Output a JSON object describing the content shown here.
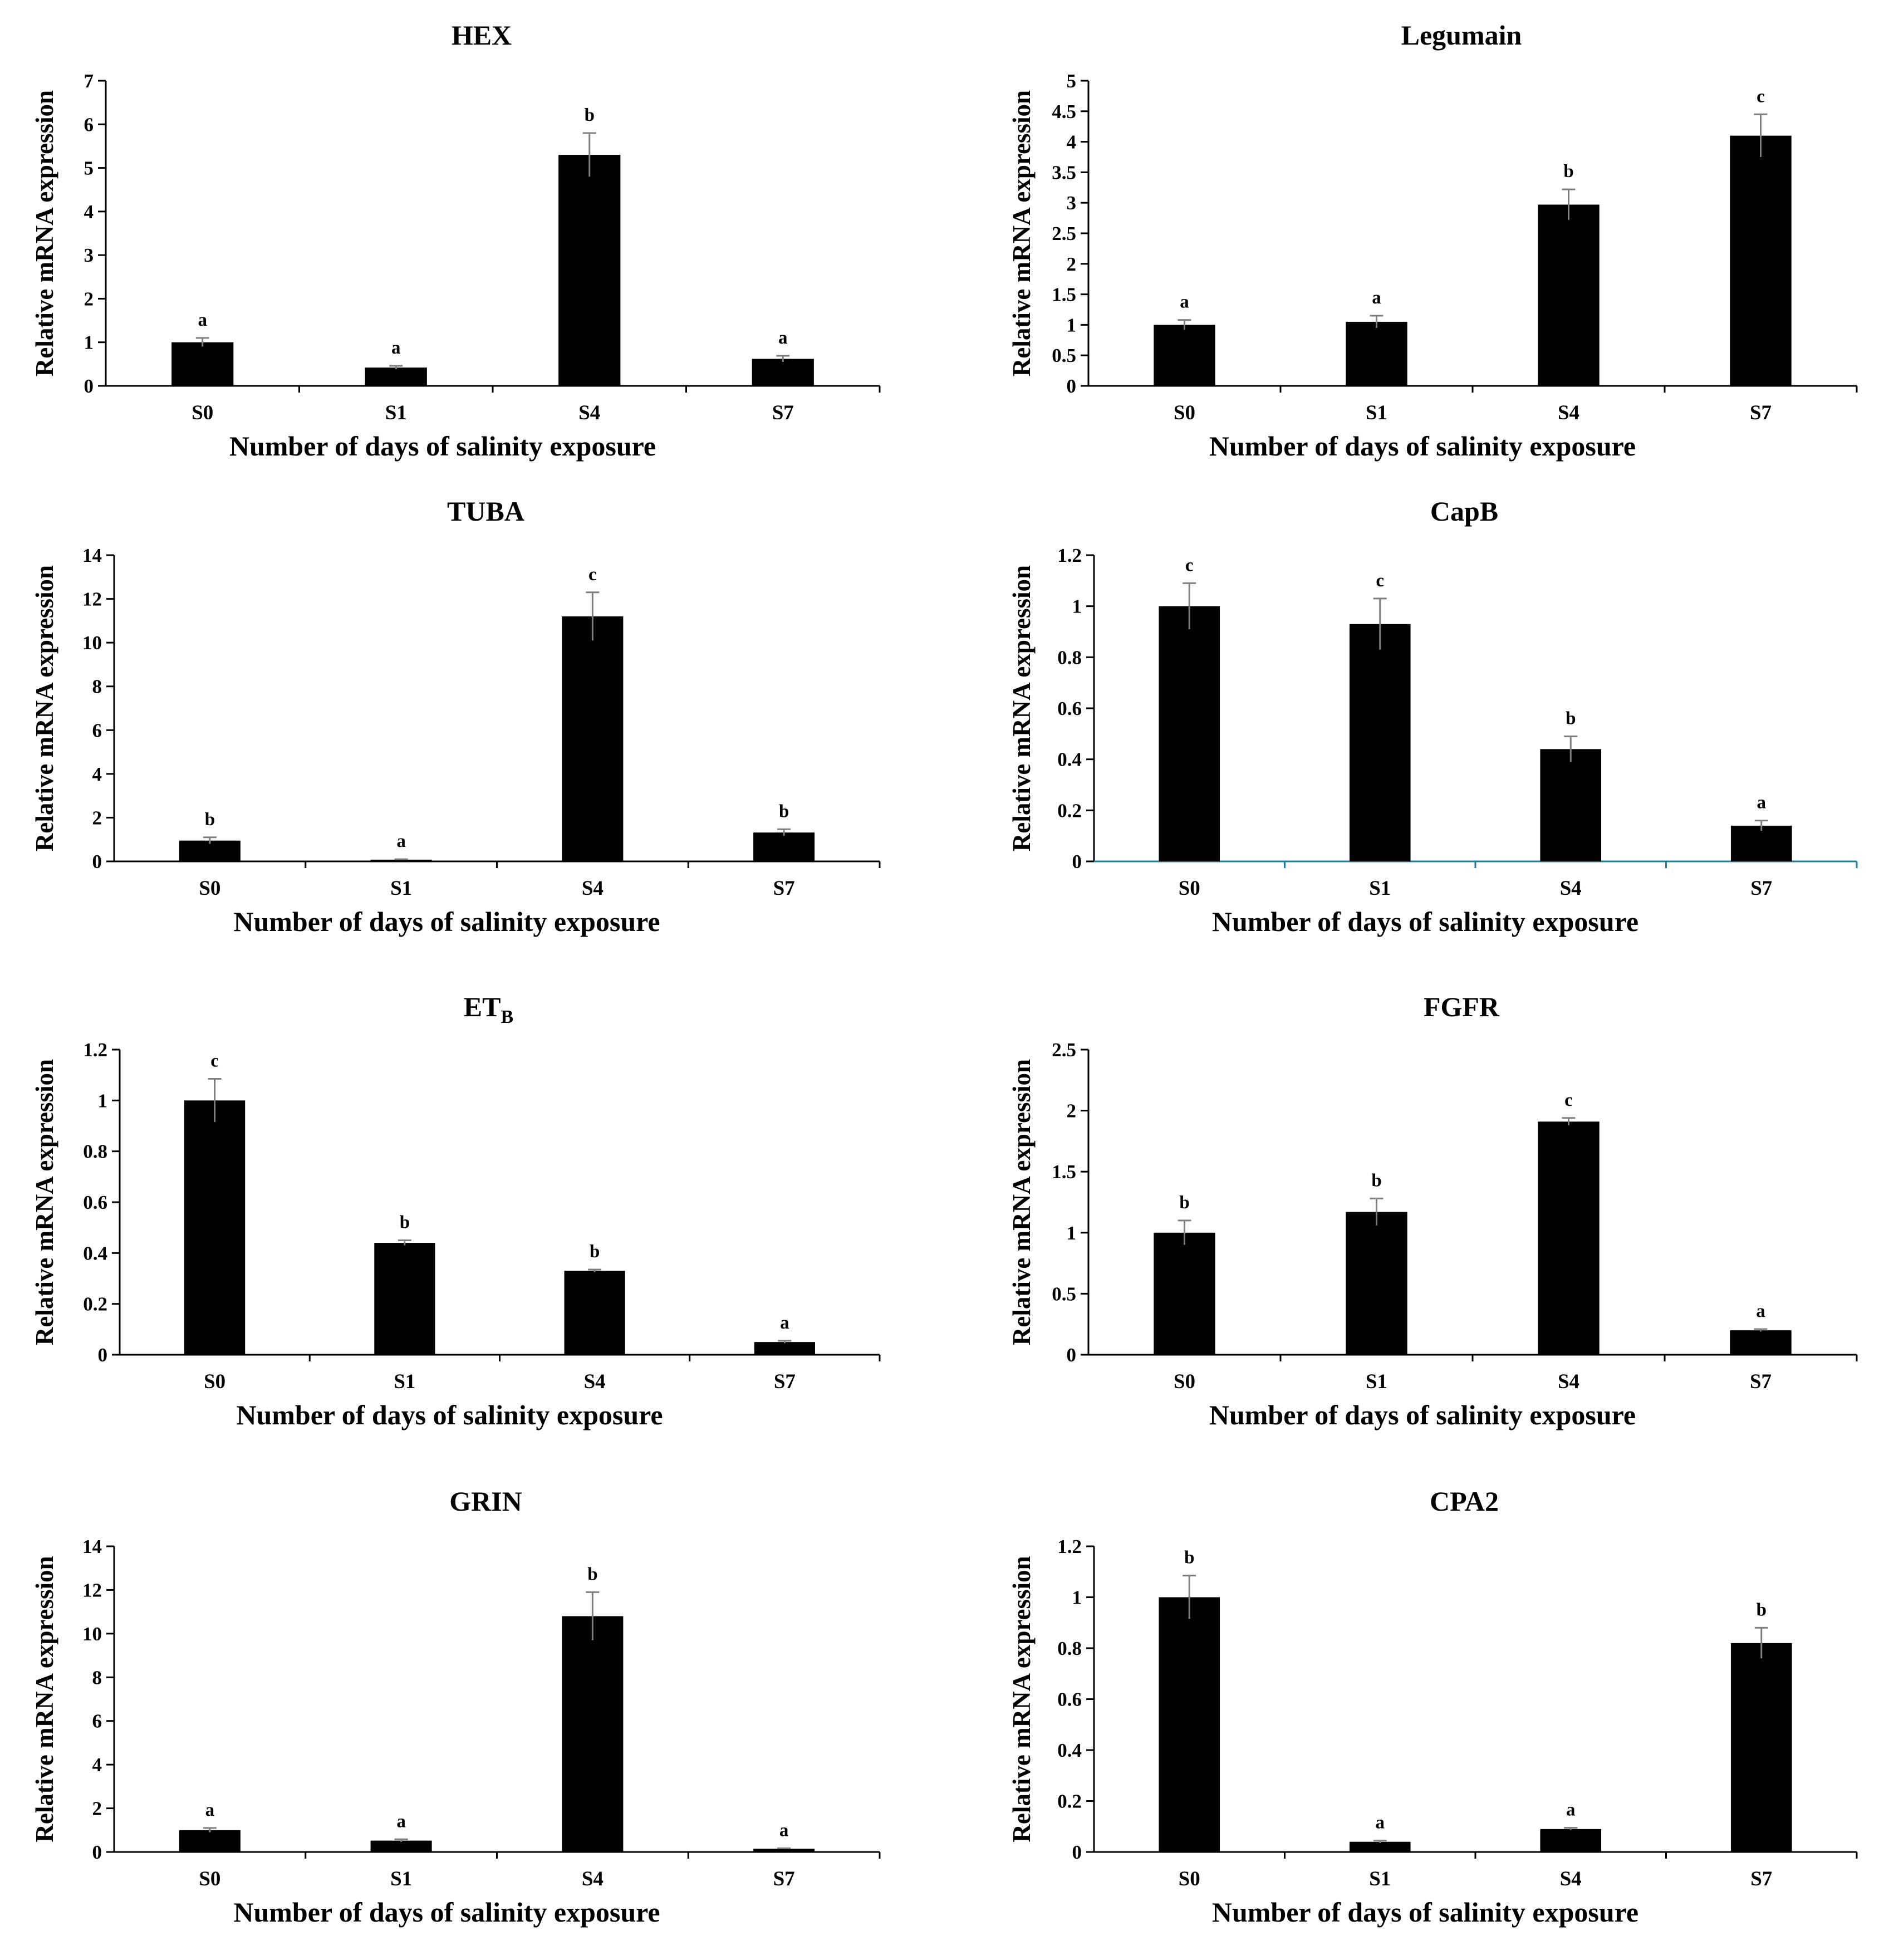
{
  "figure": {
    "background": "#ffffff",
    "bar_color": "#000000",
    "error_color": "#7f7f7f"
  },
  "chart_data": [
    {
      "type": "bar",
      "title": "HEX",
      "title_sub": "",
      "xlabel": "Number of days of salinity exposure",
      "ylabel": "Relative mRNA expression",
      "categories": [
        "S0",
        "S1",
        "S4",
        "S7"
      ],
      "values": [
        1.0,
        0.42,
        5.3,
        0.62
      ],
      "errors": [
        0.1,
        0.04,
        0.5,
        0.07
      ],
      "letters": [
        "a",
        "a",
        "b",
        "a"
      ],
      "ylim": [
        0,
        7
      ],
      "yticks": [
        "0",
        "1",
        "2",
        "3",
        "4",
        "5",
        "6",
        "7"
      ],
      "axis_color": "#000000"
    },
    {
      "type": "bar",
      "title": "Legumain",
      "title_sub": "",
      "xlabel": "Number of days of salinity exposure",
      "ylabel": "Relative mRNA expression",
      "categories": [
        "S0",
        "S1",
        "S4",
        "S7"
      ],
      "values": [
        1.0,
        1.05,
        2.97,
        4.1
      ],
      "errors": [
        0.08,
        0.1,
        0.25,
        0.35
      ],
      "letters": [
        "a",
        "a",
        "b",
        "c"
      ],
      "ylim": [
        0,
        5
      ],
      "yticks": [
        "0",
        "0.5",
        "1",
        "1.5",
        "2",
        "2.5",
        "3",
        "3.5",
        "4",
        "4.5",
        "5"
      ],
      "axis_color": "#000000"
    },
    {
      "type": "bar",
      "title": "TUBA",
      "title_sub": "",
      "xlabel": "Number of days of salinity exposure",
      "ylabel": "Relative mRNA expression",
      "categories": [
        "S0",
        "S1",
        "S4",
        "S7"
      ],
      "values": [
        0.95,
        0.08,
        11.2,
        1.32
      ],
      "errors": [
        0.15,
        0.02,
        1.1,
        0.15
      ],
      "letters": [
        "b",
        "a",
        "c",
        "b"
      ],
      "ylim": [
        0,
        14
      ],
      "yticks": [
        "0",
        "2",
        "4",
        "6",
        "8",
        "10",
        "12",
        "14"
      ],
      "axis_color": "#000000"
    },
    {
      "type": "bar",
      "title": "CapB",
      "title_sub": "",
      "xlabel": "Number of days of salinity exposure",
      "ylabel": "Relative mRNA expression",
      "categories": [
        "S0",
        "S1",
        "S4",
        "S7"
      ],
      "values": [
        1.0,
        0.93,
        0.44,
        0.14
      ],
      "errors": [
        0.09,
        0.1,
        0.05,
        0.02
      ],
      "letters": [
        "c",
        "c",
        "b",
        "a"
      ],
      "ylim": [
        0,
        1.2
      ],
      "yticks": [
        "0",
        "0.2",
        "0.4",
        "0.6",
        "0.8",
        "1",
        "1.2"
      ],
      "axis_color": "#1f7f9f"
    },
    {
      "type": "bar",
      "title": "ET",
      "title_sub": "B",
      "xlabel": "Number of days of salinity exposure",
      "ylabel": "Relative mRNA expression",
      "categories": [
        "S0",
        "S1",
        "S4",
        "S7"
      ],
      "values": [
        1.0,
        0.44,
        0.33,
        0.05
      ],
      "errors": [
        0.085,
        0.01,
        0.005,
        0.005
      ],
      "letters": [
        "c",
        "b",
        "b",
        "a"
      ],
      "ylim": [
        0,
        1.2
      ],
      "yticks": [
        "0",
        "0.2",
        "0.4",
        "0.6",
        "0.8",
        "1",
        "1.2"
      ],
      "axis_color": "#000000"
    },
    {
      "type": "bar",
      "title": "FGFR",
      "title_sub": "",
      "xlabel": "Number of days of salinity exposure",
      "ylabel": "Relative mRNA expression",
      "categories": [
        "S0",
        "S1",
        "S4",
        "S7"
      ],
      "values": [
        1.0,
        1.17,
        1.91,
        0.2
      ],
      "errors": [
        0.1,
        0.11,
        0.03,
        0.01
      ],
      "letters": [
        "b",
        "b",
        "c",
        "a"
      ],
      "ylim": [
        0,
        2.5
      ],
      "yticks": [
        "0",
        "0.5",
        "1",
        "1.5",
        "2",
        "2.5"
      ],
      "axis_color": "#000000"
    },
    {
      "type": "bar",
      "title": "GRIN",
      "title_sub": "",
      "xlabel": "Number of days of salinity exposure",
      "ylabel": "Relative mRNA expression",
      "categories": [
        "S0",
        "S1",
        "S4",
        "S7"
      ],
      "values": [
        1.0,
        0.52,
        10.8,
        0.15
      ],
      "errors": [
        0.1,
        0.06,
        1.1,
        0.02
      ],
      "letters": [
        "a",
        "a",
        "b",
        "a"
      ],
      "ylim": [
        0,
        14
      ],
      "yticks": [
        "0",
        "2",
        "4",
        "6",
        "8",
        "10",
        "12",
        "14"
      ],
      "axis_color": "#000000"
    },
    {
      "type": "bar",
      "title": "CPA2",
      "title_sub": "",
      "xlabel": "Number of days of salinity exposure",
      "ylabel": "Relative mRNA expression",
      "categories": [
        "S0",
        "S1",
        "S4",
        "S7"
      ],
      "values": [
        1.0,
        0.04,
        0.09,
        0.82
      ],
      "errors": [
        0.085,
        0.005,
        0.005,
        0.06
      ],
      "letters": [
        "b",
        "a",
        "a",
        "b"
      ],
      "ylim": [
        0,
        1.2
      ],
      "yticks": [
        "0",
        "0.2",
        "0.4",
        "0.6",
        "0.8",
        "1",
        "1.2"
      ],
      "axis_color": "#000000"
    }
  ]
}
